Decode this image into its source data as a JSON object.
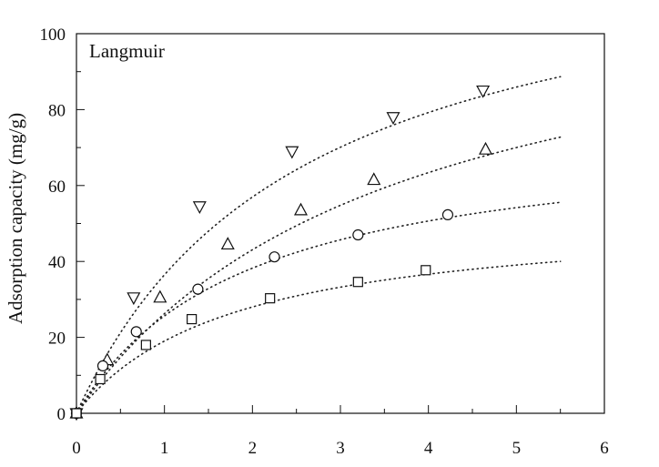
{
  "chart_data": {
    "type": "scatter",
    "title": "",
    "annotation": "Langmuir",
    "xlabel": "",
    "ylabel": "Adsorption capacity (mg/g)",
    "xlim": [
      0,
      6
    ],
    "ylim": [
      0,
      100
    ],
    "x_ticks": [
      0,
      1,
      2,
      3,
      4,
      5,
      6
    ],
    "y_ticks": [
      0,
      20,
      40,
      60,
      80,
      100
    ],
    "grid": false,
    "legend": "none",
    "series": [
      {
        "marker": "triangle-down",
        "points": [
          [
            0,
            0
          ],
          [
            0.65,
            30.5
          ],
          [
            1.4,
            54.5
          ],
          [
            2.45,
            69
          ],
          [
            3.6,
            78
          ],
          [
            4.62,
            85
          ]
        ],
        "fit_curve": {
          "model": "langmuir",
          "qmax": 130,
          "K": 0.39,
          "line_style": "dotted"
        }
      },
      {
        "marker": "triangle-up",
        "points": [
          [
            0,
            0
          ],
          [
            0.35,
            14
          ],
          [
            0.95,
            30.5
          ],
          [
            1.72,
            44.5
          ],
          [
            2.55,
            53.5
          ],
          [
            3.38,
            61.5
          ],
          [
            4.65,
            69.5
          ]
        ],
        "fit_curve": {
          "model": "langmuir",
          "qmax": 120,
          "K": 0.28,
          "line_style": "dotted"
        }
      },
      {
        "marker": "circle",
        "points": [
          [
            0,
            0
          ],
          [
            0.3,
            12.5
          ],
          [
            0.68,
            21.5
          ],
          [
            1.38,
            32.7
          ],
          [
            2.25,
            41.2
          ],
          [
            3.2,
            47
          ],
          [
            4.22,
            52.3
          ]
        ],
        "fit_curve": {
          "model": "langmuir",
          "qmax": 75,
          "K": 0.52,
          "line_style": "dotted"
        }
      },
      {
        "marker": "square",
        "points": [
          [
            0,
            0
          ],
          [
            0.27,
            9
          ],
          [
            0.79,
            18
          ],
          [
            1.31,
            24.8
          ],
          [
            2.2,
            30.3
          ],
          [
            3.2,
            34.6
          ],
          [
            3.97,
            37.7
          ]
        ],
        "fit_curve": {
          "model": "langmuir",
          "qmax": 53,
          "K": 0.56,
          "line_style": "dotted"
        }
      }
    ]
  }
}
